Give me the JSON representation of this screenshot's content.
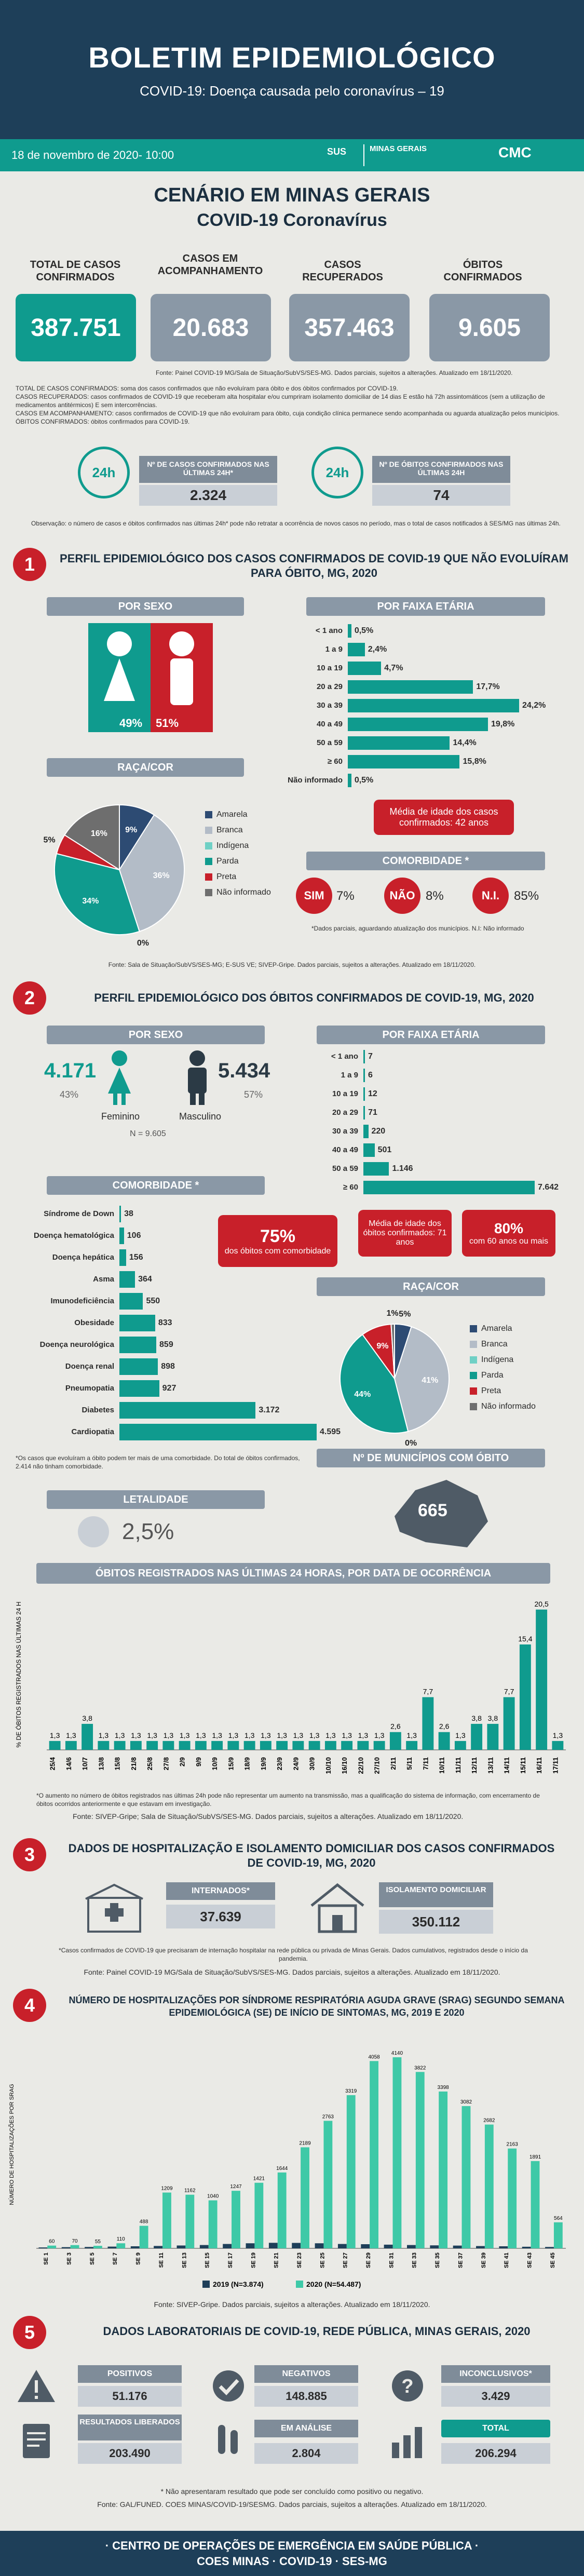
{
  "header": {
    "title": "BOLETIM EPIDEMIOLÓGICO",
    "subtitle": "COVID-19: Doença causada pelo coronavírus – 19",
    "date": "18 de novembro de 2020- 10:00",
    "logo_sus": "SUS",
    "logo_mg": "MINAS GERAIS",
    "logo_cmc": "CMC"
  },
  "scenario": {
    "line1": "CENÁRIO EM MINAS GERAIS",
    "line2": "COVID-19 Coronavírus"
  },
  "kpis": [
    {
      "label": "TOTAL DE CASOS CONFIRMADOS",
      "value": "387.751"
    },
    {
      "label": "CASOS EM ACOMPANHAMENTO",
      "value": "20.683"
    },
    {
      "label": "CASOS RECUPERADOS",
      "value": "357.463"
    },
    {
      "label": "ÓBITOS CONFIRMADOS",
      "value": "9.605"
    }
  ],
  "kpi_source": "Fonte: Painel COVID-19 MG/Sala de Situação/SubVS/SES-MG. Dados parciais, sujeitos a alterações. Atualizado em 18/11/2020.",
  "definitions": [
    "TOTAL DE CASOS CONFIRMADOS: soma dos casos confirmados que não evoluíram para óbito e dos óbitos confirmados por COVID-19.",
    "CASOS RECUPERADOS: casos confirmados de COVID-19 que receberam alta hospitalar e/ou cumpriram isolamento domiciliar de 14 dias E estão há 72h assintomáticos (sem a utilização de medicamentos antitérmicos) E sem intercorrências.",
    "CASOS EM ACOMPANHAMENTO: casos confirmados de COVID-19 que não evoluíram para óbito, cuja condição clínica permanece sendo acompanhada ou aguarda atualização pelos municípios.",
    "ÓBITOS CONFIRMADOS: óbitos confirmados para COVID-19."
  ],
  "last24": {
    "cases_label": "Nº DE CASOS CONFIRMADOS NAS ÚLTIMAS 24H*",
    "cases": "2.324",
    "deaths_label": "Nº DE ÓBITOS CONFIRMADOS NAS ÚLTIMAS 24H",
    "deaths": "74",
    "icon_text": "24h"
  },
  "observation": "Observação: o número de casos e óbitos confirmados nas últimas 24h* pode não retratar a ocorrência de novos casos no período, mas o total de casos notificados à SES/MG nas últimas 24h.",
  "s1": {
    "num": "1",
    "title": "PERFIL EPIDEMIOLÓGICO DOS CASOS CONFIRMADOS DE COVID-19 QUE NÃO EVOLUÍRAM PARA ÓBITO, MG, 2020",
    "sex_label": "POR SEXO",
    "female_pct": "49%",
    "male_pct": "51%",
    "age_label": "POR FAIXA ETÁRIA",
    "age": [
      {
        "label": "< 1 ano",
        "value": 0.5,
        "text": "0,5%"
      },
      {
        "label": "1 a 9",
        "value": 2.4,
        "text": "2,4%"
      },
      {
        "label": "10 a 19",
        "value": 4.7,
        "text": "4,7%"
      },
      {
        "label": "20 a 29",
        "value": 17.7,
        "text": "17,7%"
      },
      {
        "label": "30 a 39",
        "value": 24.2,
        "text": "24,2%"
      },
      {
        "label": "40 a 49",
        "value": 19.8,
        "text": "19,8%"
      },
      {
        "label": "50 a 59",
        "value": 14.4,
        "text": "14,4%"
      },
      {
        "label": "≥ 60",
        "value": 15.8,
        "text": "15,8%"
      },
      {
        "label": "Não informado",
        "value": 0.5,
        "text": "0,5%"
      }
    ],
    "age_mean": "Média de idade dos casos confirmados: 42 anos",
    "race_label": "RAÇA/COR",
    "race": [
      {
        "name": "Amarela",
        "value": 9,
        "color": "#2d4b73"
      },
      {
        "name": "Branca",
        "value": 36,
        "color": "#b3bcc7"
      },
      {
        "name": "Indígena",
        "value": 0,
        "color": "#6fd0c5"
      },
      {
        "name": "Parda",
        "value": 34,
        "color": "#0f9b8e"
      },
      {
        "name": "Preta",
        "value": 5,
        "color": "#c8202a"
      },
      {
        "name": "Não informado",
        "value": 16,
        "color": "#6e6e6e"
      }
    ],
    "race_labels": [
      "9%",
      "36%",
      "0%",
      "34%",
      "5%",
      "16%"
    ],
    "comorb_label": "COMORBIDADE *",
    "comorb": [
      {
        "k": "SIM",
        "v": "7%"
      },
      {
        "k": "NÃO",
        "v": "8%"
      },
      {
        "k": "N.I.",
        "v": "85%"
      }
    ],
    "comorb_note": "*Dados parciais, aguardando atualização dos municípios. N.I: Não informado",
    "source": "Fonte: Sala de Situação/SubVS/SES-MG; E-SUS VE; SIVEP-Gripe. Dados parciais, sujeitos a alterações. Atualizado em 18/11/2020."
  },
  "s2": {
    "num": "2",
    "title": "PERFIL EPIDEMIOLÓGICO DOS ÓBITOS CONFIRMADOS DE COVID-19, MG, 2020",
    "sex_label": "POR SEXO",
    "female": "4.171",
    "female_pct": "43%",
    "female_lbl": "Feminino",
    "male": "5.434",
    "male_pct": "57%",
    "male_lbl": "Masculino",
    "n_total": "N = 9.605",
    "age_label": "POR FAIXA ETÁRIA",
    "age": [
      {
        "label": "< 1 ano",
        "value": 7,
        "text": "7"
      },
      {
        "label": "1 a 9",
        "value": 6,
        "text": "6"
      },
      {
        "label": "10 a 19",
        "value": 12,
        "text": "12"
      },
      {
        "label": "20 a 29",
        "value": 71,
        "text": "71"
      },
      {
        "label": "30 a 39",
        "value": 220,
        "text": "220"
      },
      {
        "label": "40 a 49",
        "value": 501,
        "text": "501"
      },
      {
        "label": "50 a 59",
        "value": 1146,
        "text": "1.146"
      },
      {
        "label": "≥ 60",
        "value": 7642,
        "text": "7.642"
      }
    ],
    "age_mean": "Média de idade dos óbitos confirmados: 71 anos",
    "over60": "80%",
    "over60_txt": "com 60 anos ou mais",
    "comorb_label": "COMORBIDADE *",
    "comorb": [
      {
        "label": "Síndrome de Down",
        "value": 38,
        "text": "38"
      },
      {
        "label": "Doença hematológica",
        "value": 106,
        "text": "106"
      },
      {
        "label": "Doença hepática",
        "value": 156,
        "text": "156"
      },
      {
        "label": "Asma",
        "value": 364,
        "text": "364"
      },
      {
        "label": "Imunodeficiência",
        "value": 550,
        "text": "550"
      },
      {
        "label": "Obesidade",
        "value": 833,
        "text": "833"
      },
      {
        "label": "Doença neurológica",
        "value": 859,
        "text": "859"
      },
      {
        "label": "Doença renal",
        "value": 898,
        "text": "898"
      },
      {
        "label": "Pneumopatia",
        "value": 927,
        "text": "927"
      },
      {
        "label": "Diabetes",
        "value": 3172,
        "text": "3.172"
      },
      {
        "label": "Cardiopatia",
        "value": 4595,
        "text": "4.595"
      }
    ],
    "comorb_pct": "75%",
    "comorb_pct_txt": "dos óbitos com comorbidade",
    "comorb_note": "*Os casos que evoluíram a óbito podem ter mais de uma comorbidade. Do total de óbitos confirmados, 2.414 não tinham comorbidade.",
    "race_label": "RAÇA/COR",
    "race": [
      {
        "name": "Amarela",
        "value": 5,
        "color": "#2d4b73"
      },
      {
        "name": "Branca",
        "value": 41,
        "color": "#b3bcc7"
      },
      {
        "name": "Indígena",
        "value": 0,
        "color": "#6fd0c5"
      },
      {
        "name": "Parda",
        "value": 44,
        "color": "#0f9b8e"
      },
      {
        "name": "Preta",
        "value": 9,
        "color": "#c8202a"
      },
      {
        "name": "Não informado",
        "value": 1,
        "color": "#6e6e6e"
      }
    ],
    "race_labels": [
      "5%",
      "41%",
      "0%",
      "44%",
      "9%",
      "1%"
    ],
    "lethality_label": "LETALIDADE",
    "lethality": "2,5%",
    "muni_label": "Nº DE MUNICÍPIOS COM ÓBITO",
    "muni": "665",
    "deaths24_title": "ÓBITOS REGISTRADOS NAS ÚLTIMAS 24 HORAS, POR DATA DE OCORRÊNCIA",
    "deaths24_note": "*O aumento no número de óbitos registrados nas últimas 24h pode não representar um aumento na transmissão, mas a qualificação do sistema de informação, com encerramento de óbitos ocorridos anteriormente e que estavam em investigação.",
    "source": "Fonte: SIVEP-Gripe; Sala de Situação/SubVS/SES-MG. Dados parciais, sujeitos a alterações. Atualizado em 18/11/2020."
  },
  "s3": {
    "num": "3",
    "title": "DADOS DE HOSPITALIZAÇÃO E ISOLAMENTO DOMICILIAR DOS CASOS CONFIRMADOS DE COVID-19, MG, 2020",
    "intern_label": "INTERNADOS*",
    "intern": "37.639",
    "iso_label": "ISOLAMENTO DOMICILIAR",
    "iso": "350.112",
    "note": "*Casos confirmados de COVID-19 que precisaram de internação hospitalar na rede pública ou privada de Minas Gerais. Dados cumulativos, registrados desde o início da pandemia.",
    "source": "Fonte: Painel COVID-19 MG/Sala de Situação/SubVS/SES-MG. Dados parciais, sujeitos a alterações. Atualizado em 18/11/2020."
  },
  "s4": {
    "num": "4",
    "title": "NÚMERO DE HOSPITALIZAÇÕES POR SÍNDROME RESPIRATÓRIA AGUDA GRAVE (SRAG) SEGUNDO SEMANA EPIDEMIOLÓGICA (SE) DE INÍCIO DE SINTOMAS, MG, 2019 E 2020",
    "source": "Fonte: SIVEP-Gripe. Dados parciais, sujeitos a alterações. Atualizado em 18/11/2020."
  },
  "s5": {
    "num": "5",
    "title": "DADOS LABORATORIAIS DE COVID-19, REDE PÚBLICA, MINAS GERAIS, 2020",
    "items": [
      {
        "label": "POSITIVOS",
        "value": "51.176"
      },
      {
        "label": "NEGATIVOS",
        "value": "148.885"
      },
      {
        "label": "INCONCLUSIVOS*",
        "value": "3.429"
      },
      {
        "label": "RESULTADOS LIBERADOS",
        "value": "203.490"
      },
      {
        "label": "EM ANÁLISE",
        "value": "2.804"
      },
      {
        "label": "TOTAL",
        "value": "206.294"
      }
    ],
    "note": "* Não apresentaram resultado que pode ser concluído como positivo ou negativo.",
    "source": "Fonte: GAL/FUNED. COES MINAS/COVID-19/SESMG. Dados parciais, sujeitos a alterações. Atualizado em 18/11/2020."
  },
  "footer": {
    "line1": "· CENTRO DE OPERAÇÕES DE EMERGÊNCIA EM SAÚDE PÚBLICA ·",
    "line2": "COES MINAS · COVID-19 · SES-MG"
  },
  "chart_data": [
    {
      "type": "bar",
      "title": "ÓBITOS REGISTRADOS NAS ÚLTIMAS 24 HORAS, POR DATA DE OCORRÊNCIA",
      "ylabel": "% DE ÓBITOS REGISTRADOS NAS ÚLTIMAS 24 H",
      "categories": [
        "25/4",
        "14/6",
        "10/7",
        "13/8",
        "15/8",
        "21/8",
        "25/8",
        "27/8",
        "2/9",
        "9/9",
        "10/9",
        "15/9",
        "18/9",
        "19/9",
        "23/9",
        "24/9",
        "30/9",
        "10/10",
        "16/10",
        "22/10",
        "27/10",
        "2/11",
        "5/11",
        "7/11",
        "10/11",
        "11/11",
        "12/11",
        "13/11",
        "14/11",
        "15/11",
        "16/11",
        "17/11"
      ],
      "values": [
        1.3,
        1.3,
        3.8,
        1.3,
        1.3,
        1.3,
        1.3,
        1.3,
        1.3,
        1.3,
        1.3,
        1.3,
        1.3,
        1.3,
        1.3,
        1.3,
        1.3,
        1.3,
        1.3,
        1.3,
        1.3,
        2.6,
        1.3,
        7.7,
        2.6,
        1.3,
        3.8,
        3.8,
        7.7,
        15.4,
        20.5,
        1.3
      ],
      "labels": [
        "1,3",
        "1,3",
        "3,8",
        "1,3",
        "1,3",
        "1,3",
        "1,3",
        "1,3",
        "1,3",
        "1,3",
        "1,3",
        "1,3",
        "1,3",
        "1,3",
        "1,3",
        "1,3",
        "1,3",
        "1,3",
        "1,3",
        "1,3",
        "1,3",
        "2,6",
        "1,3",
        "7,7",
        "2,6",
        "1,3",
        "3,8",
        "3,8",
        "7,7",
        "15,4",
        "20,5",
        "1,3"
      ],
      "ylim": [
        0,
        22
      ]
    },
    {
      "type": "bar",
      "title": "NÚMERO DE HOSPITALIZAÇÕES POR SÍNDROME RESPIRATÓRIA AGUDA GRAVE (SRAG) SEGUNDO SEMANA EPIDEMIOLÓGICA (SE) DE INÍCIO DE SINTOMAS, MG, 2019 E 2020",
      "ylabel": "NÚMERO DE HOSPITALIZAÇÕES POR SRAG",
      "categories": [
        "SE 1",
        "SE 3",
        "SE 5",
        "SE 7",
        "SE 9",
        "SE 11",
        "SE 13",
        "SE 15",
        "SE 17",
        "SE 19",
        "SE 21",
        "SE 23",
        "SE 25",
        "SE 27",
        "SE 29",
        "SE 31",
        "SE 33",
        "SE 35",
        "SE 37",
        "SE 39",
        "SE 41",
        "SE 43",
        "SE 45"
      ],
      "series": [
        {
          "name": "2019 (N=3.874)",
          "color": "#1e3f59",
          "values": [
            20,
            26,
            30,
            38,
            45,
            52,
            62,
            72,
            95,
            110,
            120,
            118,
            110,
            95,
            90,
            80,
            72,
            65,
            60,
            50,
            45,
            35,
            30
          ]
        },
        {
          "name": "2020 (N=54.487)",
          "color": "#3ec9a7",
          "values": [
            60,
            70,
            55,
            110,
            488,
            1209,
            1162,
            1040,
            1247,
            1421,
            1644,
            2189,
            2763,
            3319,
            4058,
            4140,
            3822,
            3398,
            3082,
            2682,
            2163,
            1891,
            564
          ]
        }
      ],
      "ylim": [
        0,
        4500
      ]
    }
  ]
}
